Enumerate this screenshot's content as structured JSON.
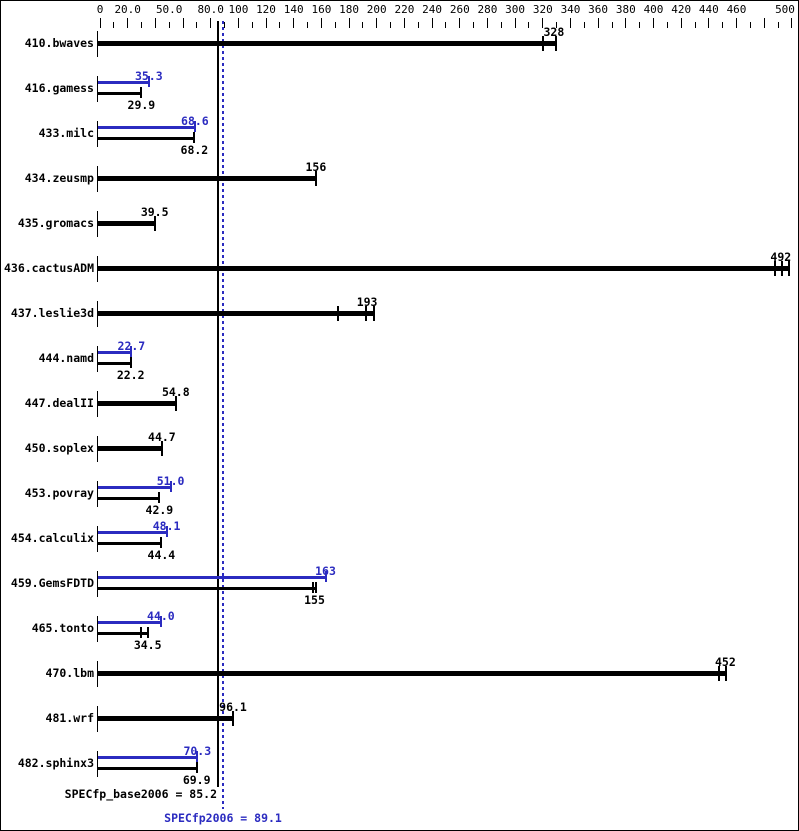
{
  "chart_data": {
    "type": "bar",
    "orientation": "horizontal",
    "title": "",
    "xlim": [
      0,
      500
    ],
    "x_tick_step": 10,
    "x_major_tick_step": 20,
    "grid": false,
    "legend": "none",
    "x_axis_labels": [
      {
        "v": 0,
        "t": "0"
      },
      {
        "v": 20,
        "t": "20.0"
      },
      {
        "v": 50,
        "t": "50.0"
      },
      {
        "v": 80,
        "t": "80.0"
      },
      {
        "v": 100,
        "t": "100"
      },
      {
        "v": 120,
        "t": "120"
      },
      {
        "v": 140,
        "t": "140"
      },
      {
        "v": 160,
        "t": "160"
      },
      {
        "v": 180,
        "t": "180"
      },
      {
        "v": 200,
        "t": "200"
      },
      {
        "v": 220,
        "t": "220"
      },
      {
        "v": 240,
        "t": "240"
      },
      {
        "v": 260,
        "t": "260"
      },
      {
        "v": 280,
        "t": "280"
      },
      {
        "v": 300,
        "t": "300"
      },
      {
        "v": 320,
        "t": "320"
      },
      {
        "v": 340,
        "t": "340"
      },
      {
        "v": 360,
        "t": "360"
      },
      {
        "v": 380,
        "t": "380"
      },
      {
        "v": 400,
        "t": "400"
      },
      {
        "v": 420,
        "t": "420"
      },
      {
        "v": 440,
        "t": "440"
      },
      {
        "v": 460,
        "t": "460"
      },
      {
        "v": 500,
        "t": "500"
      }
    ],
    "rows": [
      {
        "name": "410.bwaves",
        "bars": [
          {
            "kind": "single",
            "value": 328,
            "label": "328",
            "run_ticks": [
              320,
              329.5
            ],
            "bar_end": 329.5
          }
        ]
      },
      {
        "name": "416.gamess",
        "bars": [
          {
            "kind": "peak",
            "value": 35.3,
            "label": "35.3"
          },
          {
            "kind": "base",
            "value": 29.9,
            "label": "29.9"
          }
        ]
      },
      {
        "name": "433.milc",
        "bars": [
          {
            "kind": "peak",
            "value": 68.6,
            "label": "68.6"
          },
          {
            "kind": "base",
            "value": 68.2,
            "label": "68.2"
          }
        ]
      },
      {
        "name": "434.zeusmp",
        "bars": [
          {
            "kind": "single",
            "value": 156,
            "label": "156"
          }
        ]
      },
      {
        "name": "435.gromacs",
        "bars": [
          {
            "kind": "single",
            "value": 39.5,
            "label": "39.5"
          }
        ]
      },
      {
        "name": "436.cactusADM",
        "bars": [
          {
            "kind": "single",
            "value": 492,
            "label": "492",
            "run_ticks": [
              488,
              493,
              498
            ],
            "bar_end": 498
          }
        ]
      },
      {
        "name": "437.leslie3d",
        "bars": [
          {
            "kind": "single",
            "value": 193,
            "label": "193",
            "run_ticks": [
              172,
              192,
              198
            ],
            "bar_end": 198
          }
        ]
      },
      {
        "name": "444.namd",
        "bars": [
          {
            "kind": "peak",
            "value": 22.7,
            "label": "22.7"
          },
          {
            "kind": "base",
            "value": 22.2,
            "label": "22.2"
          }
        ]
      },
      {
        "name": "447.dealII",
        "bars": [
          {
            "kind": "single",
            "value": 54.8,
            "label": "54.8"
          }
        ]
      },
      {
        "name": "450.soplex",
        "bars": [
          {
            "kind": "single",
            "value": 44.7,
            "label": "44.7"
          }
        ]
      },
      {
        "name": "453.povray",
        "bars": [
          {
            "kind": "peak",
            "value": 51.0,
            "label": "51.0"
          },
          {
            "kind": "base",
            "value": 42.9,
            "label": "42.9"
          }
        ]
      },
      {
        "name": "454.calculix",
        "bars": [
          {
            "kind": "peak",
            "value": 48.1,
            "label": "48.1"
          },
          {
            "kind": "base",
            "value": 44.4,
            "label": "44.4"
          }
        ]
      },
      {
        "name": "459.GemsFDTD",
        "bars": [
          {
            "kind": "peak",
            "value": 163,
            "label": "163"
          },
          {
            "kind": "base",
            "value": 155,
            "label": "155",
            "run_ticks": [
              153.7,
              156.1
            ],
            "bar_end": 156.1
          }
        ]
      },
      {
        "name": "465.tonto",
        "bars": [
          {
            "kind": "peak",
            "value": 44.0,
            "label": "44.0"
          },
          {
            "kind": "base",
            "value": 34.5,
            "label": "34.5",
            "run_ticks": [
              29.6,
              34.5
            ]
          }
        ]
      },
      {
        "name": "470.lbm",
        "bars": [
          {
            "kind": "single",
            "value": 452,
            "label": "452",
            "run_ticks": [
              447,
              452.5
            ],
            "bar_end": 452.5
          }
        ]
      },
      {
        "name": "481.wrf",
        "bars": [
          {
            "kind": "single",
            "value": 96.1,
            "label": "96.1"
          }
        ]
      },
      {
        "name": "482.sphinx3",
        "bars": [
          {
            "kind": "peak",
            "value": 70.3,
            "label": "70.3"
          },
          {
            "kind": "base",
            "value": 69.9,
            "label": "69.9"
          }
        ]
      }
    ],
    "reference_lines": [
      {
        "label": "SPECfp_base2006 = 85.2",
        "value": 85.2,
        "style": "solid",
        "color": "#000000"
      },
      {
        "label": "SPECfp2006 = 89.1",
        "value": 89.1,
        "style": "dotted",
        "color": "#2b2bc0"
      }
    ],
    "colors": {
      "base": "#000000",
      "peak": "#2b2bc0",
      "background": "#ffffff",
      "border": "#000000"
    }
  }
}
